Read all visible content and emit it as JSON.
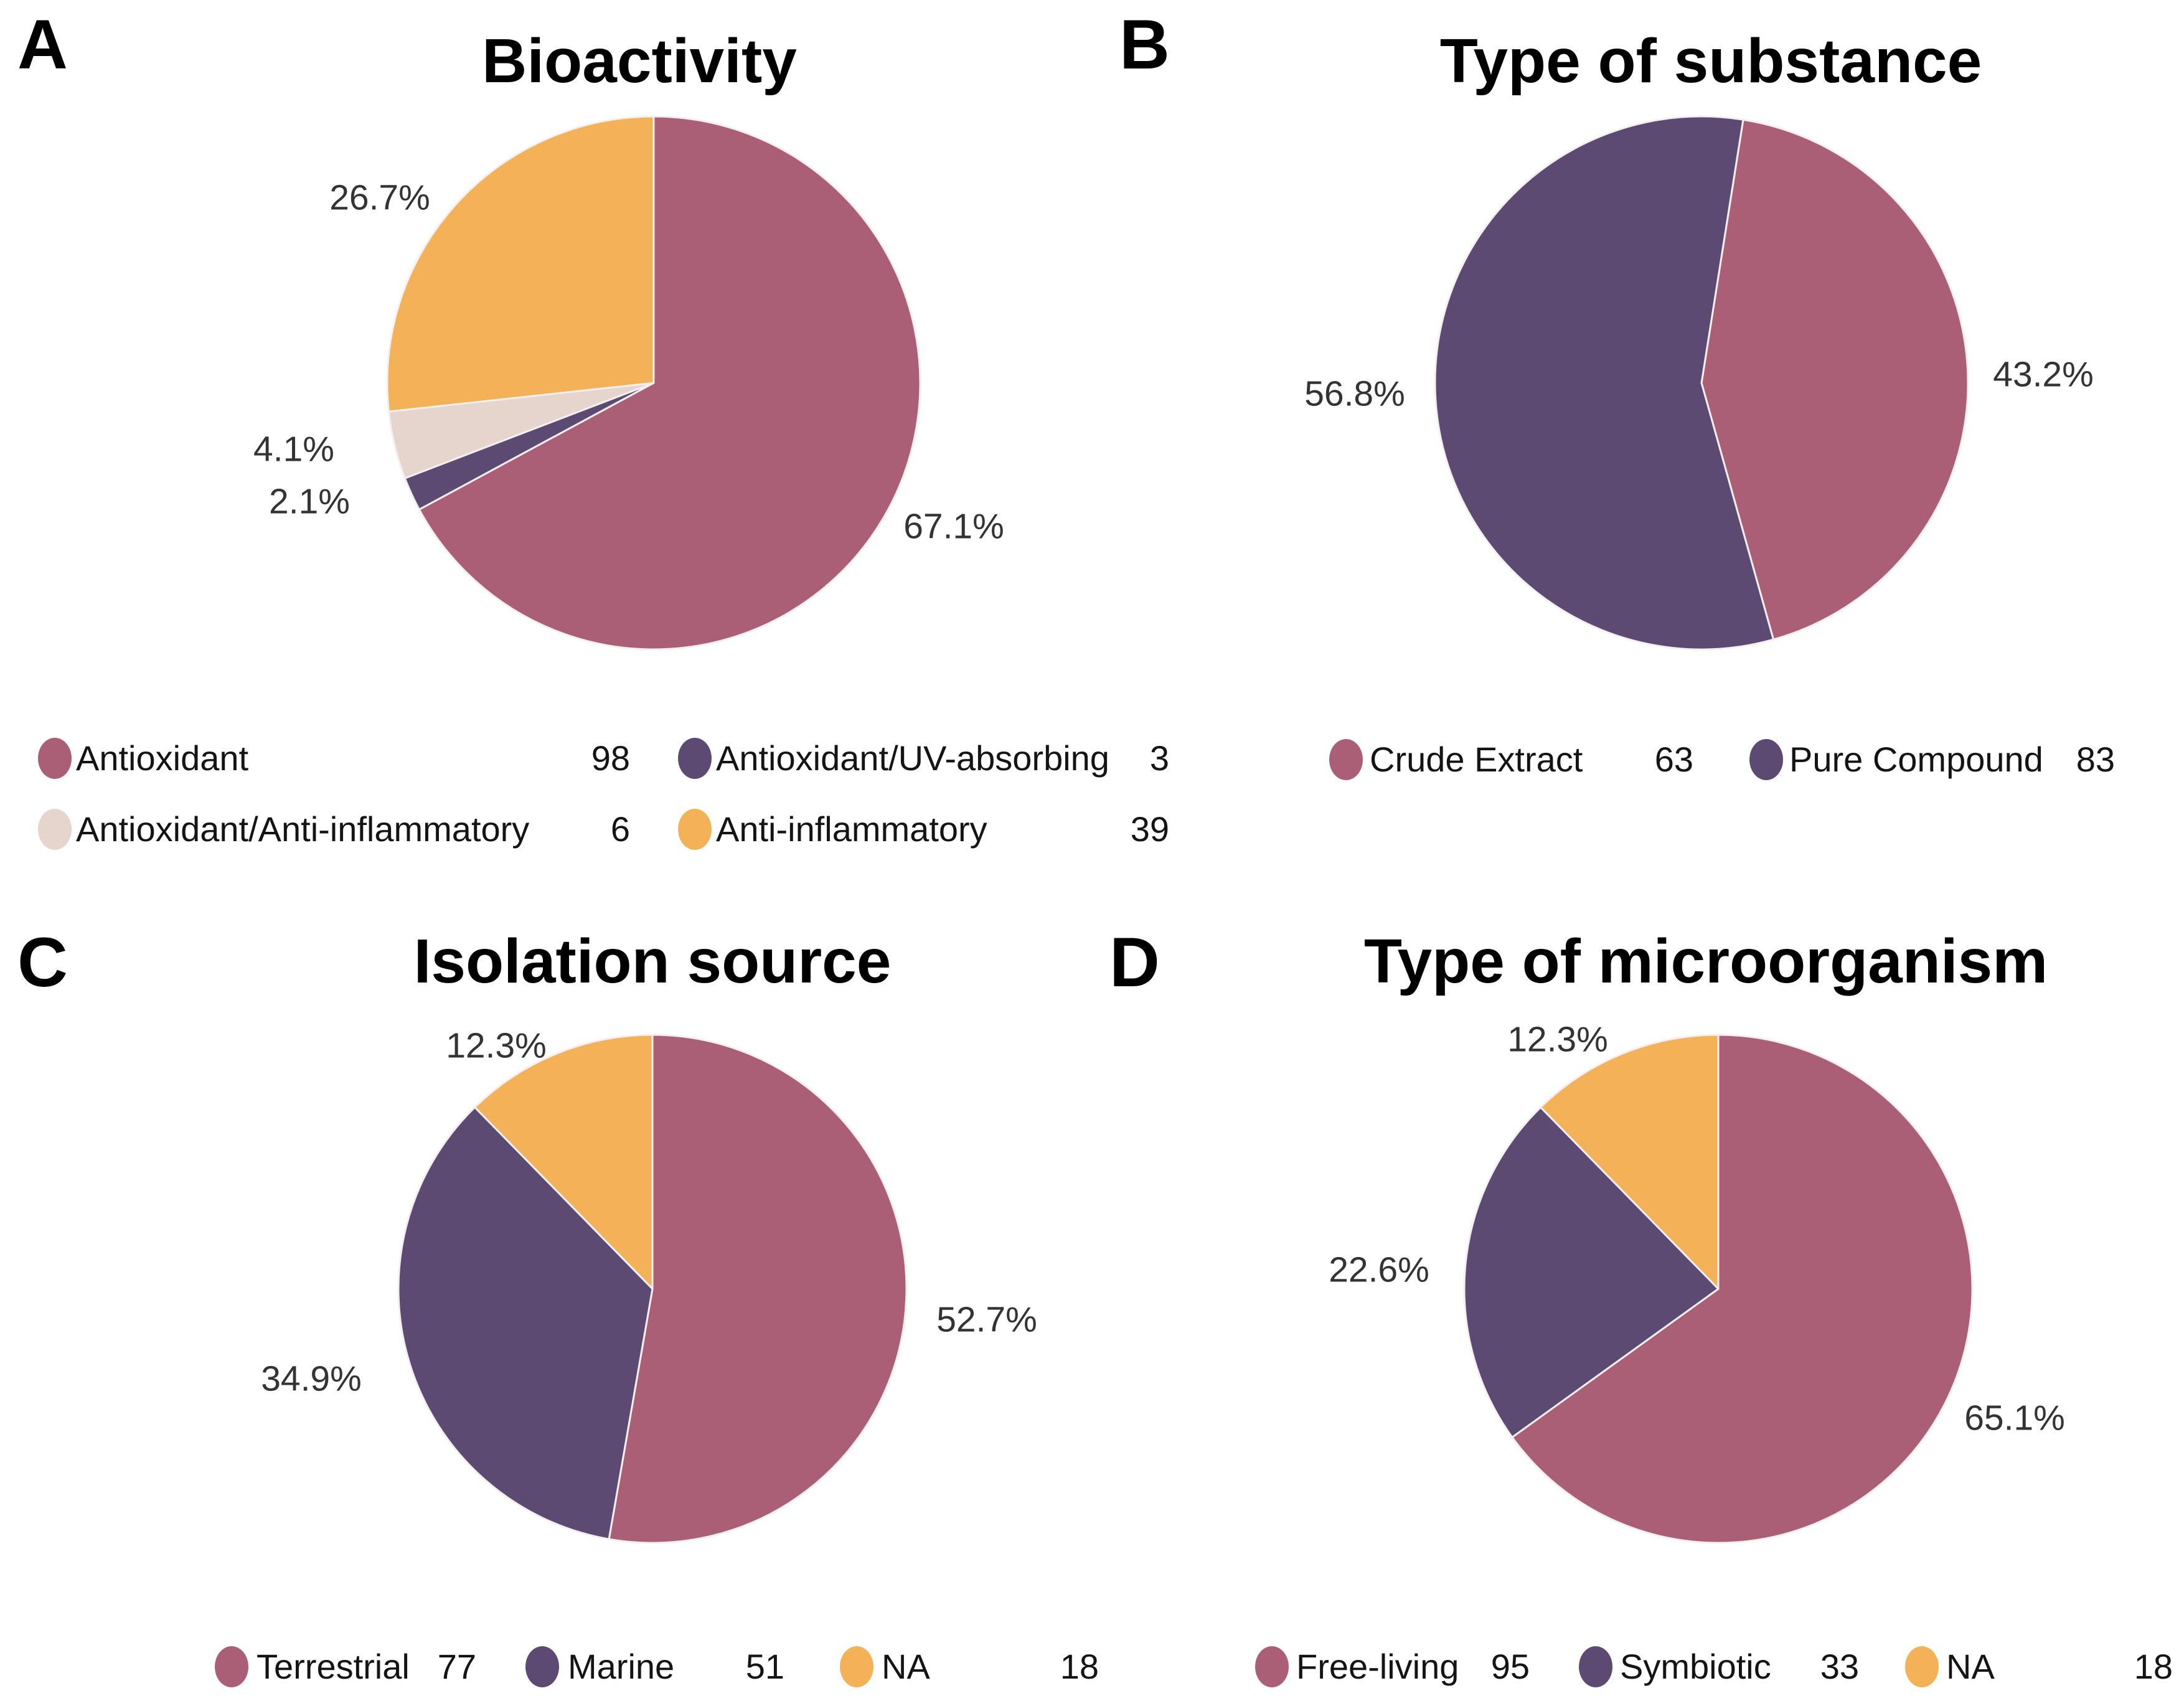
{
  "colors": {
    "maroon": "#aa5f76",
    "purple": "#5c4a73",
    "orange": "#f3b158",
    "beige": "#e6d5cd"
  },
  "panel_letters": [
    "A",
    "B",
    "C",
    "D"
  ],
  "chart_data": [
    {
      "type": "pie",
      "panel": "A",
      "title": "Bioactivity",
      "categories": [
        "Antioxidant",
        "Antioxidant/UV-absorbing",
        "Antioxidant/Anti-inflammatory",
        "Anti-inflammatory"
      ],
      "values": [
        98,
        3,
        6,
        39
      ],
      "percent_labels": [
        "67.1%",
        "2.1%",
        "4.1%",
        "26.7%"
      ],
      "color_keys": [
        "maroon",
        "purple",
        "beige",
        "orange"
      ],
      "start_angle_deg": 0,
      "direction": "clockwise",
      "legend_position": "below"
    },
    {
      "type": "pie",
      "panel": "B",
      "title": "Type of substance",
      "categories": [
        "Crude Extract",
        "Pure Compound"
      ],
      "values": [
        63,
        83
      ],
      "percent_labels": [
        "43.2%",
        "56.8%"
      ],
      "color_keys": [
        "maroon",
        "purple"
      ],
      "start_angle_deg": 9,
      "direction": "clockwise",
      "legend_position": "below"
    },
    {
      "type": "pie",
      "panel": "C",
      "title": "Isolation source",
      "categories": [
        "Terrestrial",
        "Marine",
        "NA"
      ],
      "values": [
        77,
        51,
        18
      ],
      "percent_labels": [
        "52.7%",
        "34.9%",
        "12.3%"
      ],
      "color_keys": [
        "maroon",
        "purple",
        "orange"
      ],
      "start_angle_deg": 0,
      "direction": "clockwise",
      "legend_position": "below"
    },
    {
      "type": "pie",
      "panel": "D",
      "title": "Type of microorganism",
      "categories": [
        "Free-living",
        "Symbiotic",
        "NA"
      ],
      "values": [
        95,
        33,
        18
      ],
      "percent_labels": [
        "65.1%",
        "22.6%",
        "12.3%"
      ],
      "color_keys": [
        "maroon",
        "purple",
        "orange"
      ],
      "start_angle_deg": 0,
      "direction": "clockwise",
      "legend_position": "below"
    }
  ]
}
